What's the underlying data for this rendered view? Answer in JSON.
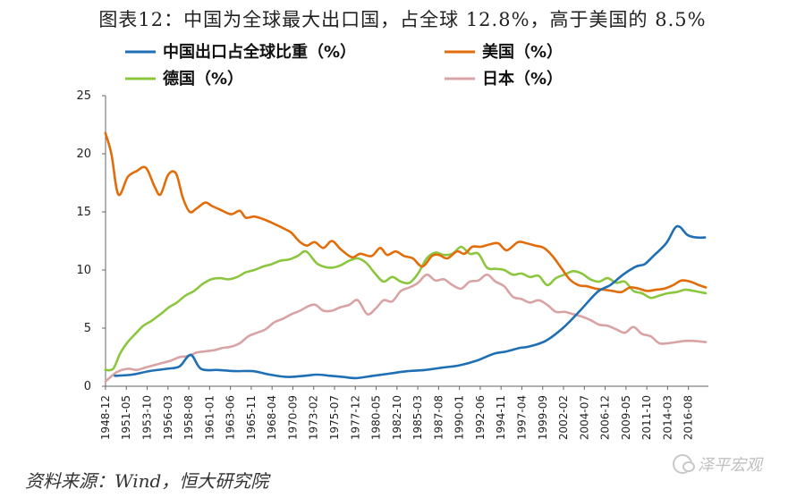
{
  "title": "图表12：中国为全球最大出口国，占全球 12.8%，高于美国的 8.5%",
  "source": "资料来源：Wind，恒大研究院",
  "watermark": "泽平宏观",
  "chart_data": {
    "type": "line",
    "ylim": [
      0,
      25
    ],
    "yticks": [
      0,
      5,
      10,
      15,
      20,
      25
    ],
    "xlim": [
      1948.92,
      2018.9
    ],
    "grid": false,
    "legend_position": "top",
    "xtick_labels": [
      "1948-12",
      "1951-05",
      "1953-10",
      "1956-03",
      "1958-08",
      "1961-01",
      "1963-06",
      "1965-11",
      "1968-04",
      "1970-09",
      "1973-02",
      "1975-07",
      "1977-12",
      "1980-05",
      "1982-10",
      "1985-03",
      "1987-08",
      "1990-01",
      "1992-06",
      "1994-11",
      "1997-04",
      "1999-09",
      "2002-02",
      "2004-07",
      "2006-12",
      "2009-05",
      "2011-10",
      "2014-03",
      "2016-08"
    ],
    "series": [
      {
        "name": "中国出口占全球比重（%）",
        "color": "#1f6fb4",
        "x": [
          1950,
          1952,
          1954,
          1956,
          1957.5,
          1958.8,
          1960,
          1962,
          1964,
          1966,
          1968,
          1970,
          1972,
          1973.5,
          1975,
          1976.5,
          1978,
          1980,
          1982,
          1984,
          1986,
          1988,
          1990,
          1992,
          1994,
          1995.5,
          1997,
          1998,
          2000,
          2002,
          2004,
          2006,
          2007.5,
          2009,
          2010.5,
          2011.5,
          2012.5,
          2014,
          2015,
          2015.6,
          2016.5,
          2017.5,
          2018.5
        ],
        "y": [
          0.9,
          1.0,
          1.3,
          1.5,
          1.7,
          2.7,
          1.5,
          1.4,
          1.3,
          1.3,
          1.0,
          0.8,
          0.9,
          1.0,
          0.9,
          0.8,
          0.7,
          0.9,
          1.1,
          1.3,
          1.4,
          1.6,
          1.8,
          2.2,
          2.8,
          3.0,
          3.3,
          3.4,
          3.9,
          5.0,
          6.5,
          8.1,
          8.7,
          9.6,
          10.3,
          10.5,
          11.2,
          12.3,
          13.6,
          13.7,
          13.0,
          12.8,
          12.8
        ]
      },
      {
        "name": "美国（%）",
        "color": "#e36c0a",
        "x": [
          1948.9,
          1949.6,
          1950.4,
          1951.5,
          1952.5,
          1953.6,
          1954.6,
          1955.3,
          1956.2,
          1957.1,
          1957.9,
          1958.7,
          1959.5,
          1960.5,
          1961.3,
          1962.2,
          1963.5,
          1964.5,
          1965.2,
          1966.2,
          1967.5,
          1968.7,
          1969.8,
          1970.5,
          1971.5,
          1972.3,
          1973.2,
          1974.2,
          1975.2,
          1976.2,
          1977.5,
          1978.5,
          1979.8,
          1980.8,
          1981.6,
          1982.6,
          1983.6,
          1984.6,
          1985.7,
          1986.8,
          1987.6,
          1988.6,
          1989.7,
          1990.6,
          1991.5,
          1992.5,
          1993.5,
          1994.5,
          1995.5,
          1996.8,
          1997.8,
          1998.8,
          1999.8,
          2000.8,
          2001.8,
          2002.8,
          2003.8,
          2004.8,
          2005.8,
          2006.8,
          2007.8,
          2008.8,
          2009.8,
          2010.8,
          2011.8,
          2012.8,
          2013.8,
          2014.8,
          2015.8,
          2016.8,
          2017.8,
          2018.6
        ],
        "y": [
          21.8,
          20.0,
          16.5,
          18.0,
          18.5,
          18.8,
          17.2,
          16.5,
          18.2,
          18.3,
          16.2,
          15.0,
          15.3,
          15.8,
          15.5,
          15.2,
          14.8,
          15.1,
          14.5,
          14.6,
          14.3,
          13.9,
          13.5,
          13.2,
          12.4,
          12.1,
          12.4,
          11.9,
          12.5,
          11.8,
          11.1,
          11.4,
          11.2,
          11.9,
          11.3,
          11.6,
          11.2,
          11.0,
          10.3,
          11.2,
          11.3,
          11.0,
          11.6,
          11.4,
          12.0,
          12.0,
          12.2,
          12.3,
          11.7,
          12.4,
          12.3,
          12.1,
          11.9,
          11.2,
          10.2,
          9.2,
          8.7,
          8.6,
          8.4,
          8.3,
          8.2,
          8.1,
          8.5,
          8.4,
          8.2,
          8.3,
          8.4,
          8.7,
          9.1,
          9.0,
          8.7,
          8.5
        ]
      },
      {
        "name": "德国（%）",
        "color": "#8cc63f",
        "x": [
          1948.9,
          1949.8,
          1950.6,
          1951.5,
          1952.5,
          1953.3,
          1954.2,
          1955.3,
          1956.3,
          1957.2,
          1958.2,
          1959.2,
          1960.2,
          1961.2,
          1962.2,
          1963.2,
          1964.2,
          1965.2,
          1966.2,
          1967.2,
          1968.2,
          1969.2,
          1970.2,
          1971.2,
          1972.2,
          1973.4,
          1974.2,
          1975.2,
          1976.2,
          1977.2,
          1978.2,
          1979.2,
          1980.2,
          1981.2,
          1982.2,
          1983.2,
          1984.2,
          1985.2,
          1986.2,
          1987.2,
          1988.2,
          1989.2,
          1990.2,
          1991.2,
          1992.2,
          1993.2,
          1994.2,
          1995.2,
          1996.2,
          1997.2,
          1998.2,
          1999.2,
          2000.2,
          2001.2,
          2002.2,
          2003.2,
          2004.2,
          2005.2,
          2006.2,
          2007.2,
          2008.2,
          2009.2,
          2010.2,
          2011.2,
          2012.2,
          2013.2,
          2014.2,
          2015.2,
          2016.2,
          2017.2,
          2018.6
        ],
        "y": [
          1.4,
          1.5,
          2.8,
          3.8,
          4.6,
          5.2,
          5.6,
          6.2,
          6.8,
          7.2,
          7.8,
          8.2,
          8.8,
          9.2,
          9.3,
          9.2,
          9.4,
          9.8,
          10.0,
          10.3,
          10.5,
          10.8,
          10.9,
          11.2,
          11.6,
          10.6,
          10.3,
          10.2,
          10.4,
          10.8,
          11.0,
          10.6,
          9.7,
          9.0,
          9.4,
          9.0,
          8.9,
          9.7,
          11.0,
          11.5,
          11.3,
          11.4,
          12.0,
          11.4,
          11.4,
          10.2,
          10.1,
          10.0,
          9.6,
          9.7,
          9.4,
          9.5,
          8.7,
          9.3,
          9.6,
          9.9,
          9.7,
          9.2,
          9.0,
          9.3,
          8.9,
          9.0,
          8.2,
          8.0,
          7.6,
          7.8,
          8.0,
          8.1,
          8.3,
          8.2,
          8.0
        ]
      },
      {
        "name": "日本（%）",
        "color": "#d9a3a3",
        "x": [
          1948.9,
          1950.2,
          1951.5,
          1952.5,
          1953.5,
          1954.5,
          1955.5,
          1956.5,
          1957.5,
          1958.5,
          1959.5,
          1960.5,
          1961.5,
          1962.5,
          1963.5,
          1964.5,
          1965.5,
          1966.5,
          1967.5,
          1968.5,
          1969.5,
          1970.5,
          1971.5,
          1972.5,
          1973.3,
          1974.2,
          1975.2,
          1976.2,
          1977.2,
          1978.2,
          1979.3,
          1980.3,
          1981.2,
          1982.2,
          1983.2,
          1984.2,
          1985.2,
          1986.2,
          1987.2,
          1988.2,
          1989.2,
          1990.2,
          1991.2,
          1992.2,
          1993.2,
          1994.2,
          1995.2,
          1996.2,
          1997.2,
          1998.2,
          1999.2,
          2000.2,
          2001.2,
          2002.2,
          2003.2,
          2004.2,
          2005.2,
          2006.2,
          2007.2,
          2008.2,
          2009.2,
          2010.2,
          2011.2,
          2012.2,
          2013.2,
          2014.2,
          2015.2,
          2016.2,
          2017.2,
          2018.6
        ],
        "y": [
          0.4,
          1.2,
          1.5,
          1.4,
          1.6,
          1.8,
          2.0,
          2.2,
          2.5,
          2.6,
          2.9,
          3.0,
          3.1,
          3.3,
          3.4,
          3.7,
          4.3,
          4.6,
          4.9,
          5.5,
          5.8,
          6.2,
          6.5,
          6.9,
          7.0,
          6.5,
          6.5,
          6.8,
          7.0,
          7.4,
          6.2,
          6.7,
          7.4,
          7.3,
          8.2,
          8.5,
          8.9,
          9.6,
          9.1,
          9.2,
          8.7,
          8.4,
          9.0,
          9.1,
          9.6,
          9.0,
          8.6,
          7.7,
          7.5,
          7.2,
          7.4,
          7.0,
          6.4,
          6.4,
          6.2,
          6.0,
          5.7,
          5.3,
          5.2,
          4.9,
          4.6,
          5.1,
          4.5,
          4.3,
          3.7,
          3.7,
          3.8,
          3.9,
          3.9,
          3.8
        ]
      }
    ]
  }
}
